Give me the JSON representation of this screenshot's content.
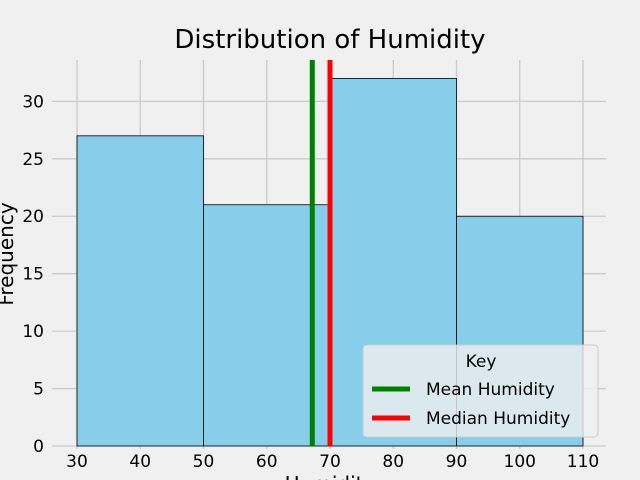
{
  "chart_data": {
    "type": "bar",
    "title": "Distribution of Humidity",
    "xlabel": "Humidity",
    "ylabel": "Frequency",
    "bins": [
      {
        "start": 30,
        "end": 50,
        "count": 27
      },
      {
        "start": 50,
        "end": 70,
        "count": 21
      },
      {
        "start": 70,
        "end": 90,
        "count": 32
      },
      {
        "start": 90,
        "end": 110,
        "count": 20
      }
    ],
    "reference_lines": [
      {
        "name": "Mean Humidity",
        "value": 67.2,
        "color": "#008000"
      },
      {
        "name": "Median Humidity",
        "value": 70.0,
        "color": "#ff0000"
      }
    ],
    "xlim": [
      30,
      110
    ],
    "ylim": [
      0,
      33.6
    ],
    "x_ticks": [
      30,
      40,
      50,
      60,
      70,
      80,
      90,
      100,
      110
    ],
    "y_ticks": [
      0,
      5,
      10,
      15,
      20,
      25,
      30
    ],
    "legend": {
      "title": "Key",
      "position": "lower-right"
    },
    "grid": true,
    "colors": {
      "bar_fill": "#87ceeb",
      "bar_edge": "#000000",
      "grid": "#cbcbcb",
      "background": "#f0f0f0"
    }
  }
}
